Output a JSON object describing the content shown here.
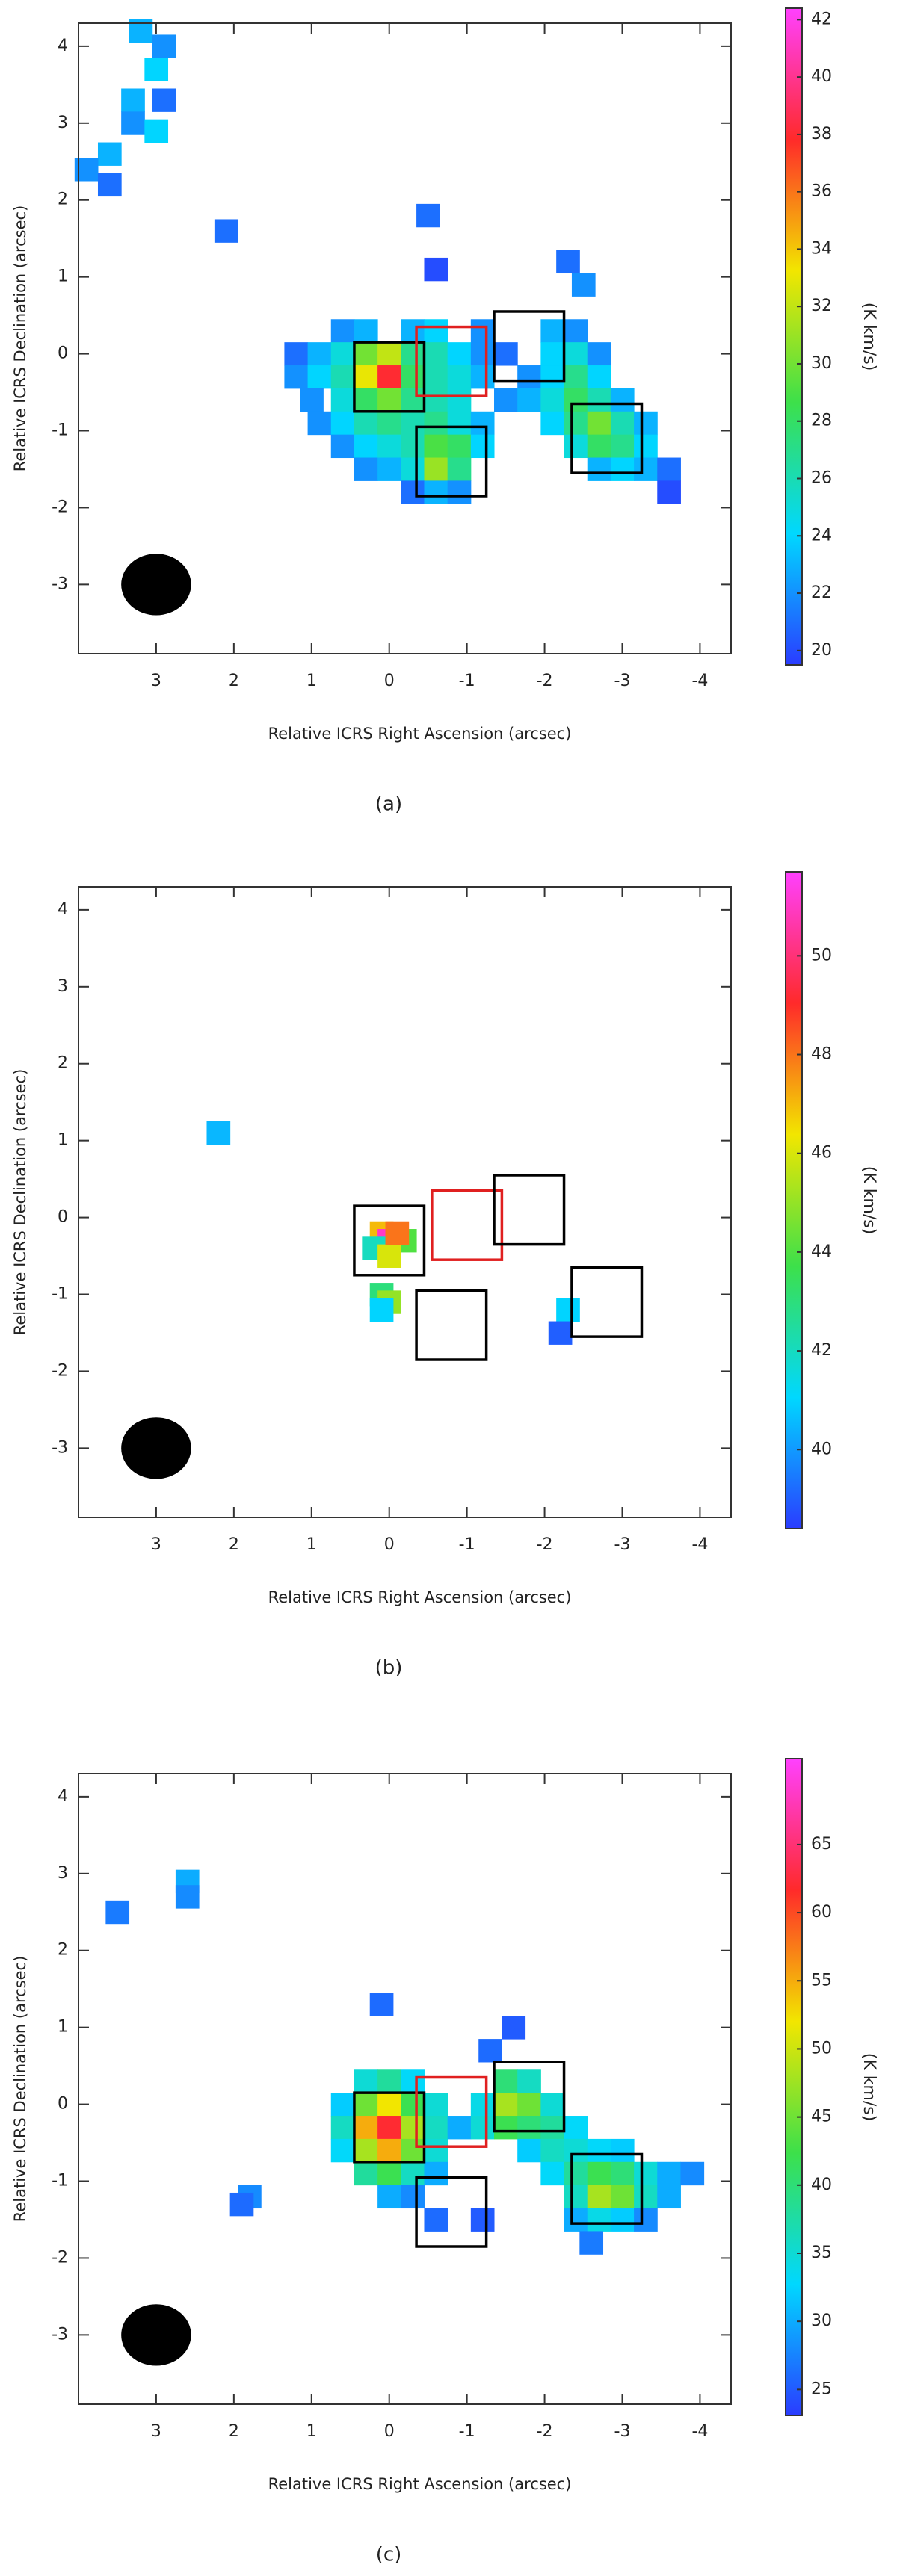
{
  "chart_data": [
    {
      "type": "map",
      "xlabel": "Relative ICRS Right Ascension (arcsec)",
      "ylabel": "Relative ICRS Declination (arcsec)",
      "caption": "(a)",
      "xlim": [
        4,
        -4.4
      ],
      "ylim": [
        -3.9,
        4.3
      ],
      "xticks": [
        3,
        2,
        1,
        0,
        -1,
        -2,
        -3,
        -4
      ],
      "yticks": [
        -3,
        -2,
        -1,
        0,
        1,
        2,
        3,
        4
      ],
      "colorbar": {
        "label": "(K km/s)",
        "lim": [
          19.5,
          42.4
        ],
        "ticks": [
          20,
          22,
          24,
          26,
          28,
          30,
          32,
          34,
          36,
          38,
          40,
          42
        ]
      },
      "colormap": [
        "#2a3cff",
        "#00d8ff",
        "#3de04a",
        "#f2e600",
        "#ff2a2a",
        "#ff40ff"
      ],
      "beam": {
        "x": 3,
        "y": -3
      },
      "boxes": [
        {
          "x": 0,
          "y": -0.3,
          "color": "#000000"
        },
        {
          "x": -0.8,
          "y": -0.1,
          "color": "#e02020"
        },
        {
          "x": -1.8,
          "y": 0.1,
          "color": "#000000"
        },
        {
          "x": -0.8,
          "y": -1.4,
          "color": "#000000"
        },
        {
          "x": -2.8,
          "y": -1.1,
          "color": "#000000"
        }
      ],
      "points": [
        {
          "x": 3.2,
          "y": 4.2,
          "value": 23
        },
        {
          "x": 2.9,
          "y": 4.0,
          "value": 22
        },
        {
          "x": 3.0,
          "y": 3.7,
          "value": 24
        },
        {
          "x": 3.3,
          "y": 3.3,
          "value": 23
        },
        {
          "x": 3.3,
          "y": 3.0,
          "value": 22
        },
        {
          "x": 3.0,
          "y": 2.9,
          "value": 24
        },
        {
          "x": 2.9,
          "y": 3.3,
          "value": 21
        },
        {
          "x": 3.6,
          "y": 2.6,
          "value": 23
        },
        {
          "x": 3.9,
          "y": 2.4,
          "value": 22
        },
        {
          "x": 3.6,
          "y": 2.2,
          "value": 21
        },
        {
          "x": 2.1,
          "y": 1.6,
          "value": 21
        },
        {
          "x": -0.5,
          "y": 1.8,
          "value": 21
        },
        {
          "x": -0.6,
          "y": 1.1,
          "value": 20
        },
        {
          "x": -2.3,
          "y": 1.2,
          "value": 21
        },
        {
          "x": -2.5,
          "y": 0.9,
          "value": 22
        },
        {
          "x": 0.6,
          "y": 0.3,
          "value": 22
        },
        {
          "x": 0.3,
          "y": 0.3,
          "value": 23
        },
        {
          "x": -0.3,
          "y": 0.3,
          "value": 23
        },
        {
          "x": -0.6,
          "y": 0.3,
          "value": 24
        },
        {
          "x": -1.2,
          "y": 0.3,
          "value": 22
        },
        {
          "x": -2.1,
          "y": 0.3,
          "value": 23
        },
        {
          "x": -2.4,
          "y": 0.3,
          "value": 22
        },
        {
          "x": 1.2,
          "y": 0.0,
          "value": 21
        },
        {
          "x": 0.9,
          "y": 0.0,
          "value": 23
        },
        {
          "x": 0.6,
          "y": 0.0,
          "value": 25
        },
        {
          "x": 0.3,
          "y": 0.0,
          "value": 30
        },
        {
          "x": 0.0,
          "y": 0.0,
          "value": 32
        },
        {
          "x": -0.3,
          "y": 0.0,
          "value": 27
        },
        {
          "x": -0.6,
          "y": 0.0,
          "value": 26
        },
        {
          "x": -0.9,
          "y": 0.0,
          "value": 24
        },
        {
          "x": -1.2,
          "y": 0.0,
          "value": 22
        },
        {
          "x": -1.5,
          "y": 0.0,
          "value": 21
        },
        {
          "x": -2.1,
          "y": 0.0,
          "value": 24
        },
        {
          "x": -2.4,
          "y": 0.0,
          "value": 25
        },
        {
          "x": -2.7,
          "y": 0.0,
          "value": 22
        },
        {
          "x": 1.2,
          "y": -0.3,
          "value": 22
        },
        {
          "x": 0.9,
          "y": -0.3,
          "value": 24
        },
        {
          "x": 0.6,
          "y": -0.3,
          "value": 26
        },
        {
          "x": 0.3,
          "y": -0.3,
          "value": 33
        },
        {
          "x": 0.0,
          "y": -0.3,
          "value": 38
        },
        {
          "x": -0.3,
          "y": -0.3,
          "value": 28
        },
        {
          "x": -0.6,
          "y": -0.3,
          "value": 26
        },
        {
          "x": -0.9,
          "y": -0.3,
          "value": 25
        },
        {
          "x": -1.2,
          "y": -0.3,
          "value": 23
        },
        {
          "x": -1.8,
          "y": -0.3,
          "value": 22
        },
        {
          "x": -2.1,
          "y": -0.3,
          "value": 24
        },
        {
          "x": -2.4,
          "y": -0.3,
          "value": 27
        },
        {
          "x": -2.7,
          "y": -0.3,
          "value": 24
        },
        {
          "x": 1.0,
          "y": -0.6,
          "value": 22
        },
        {
          "x": 0.6,
          "y": -0.6,
          "value": 25
        },
        {
          "x": 0.3,
          "y": -0.6,
          "value": 28
        },
        {
          "x": 0.0,
          "y": -0.6,
          "value": 30
        },
        {
          "x": -0.3,
          "y": -0.6,
          "value": 27
        },
        {
          "x": -0.6,
          "y": -0.6,
          "value": 26
        },
        {
          "x": -0.9,
          "y": -0.6,
          "value": 25
        },
        {
          "x": -1.5,
          "y": -0.6,
          "value": 22
        },
        {
          "x": -1.8,
          "y": -0.6,
          "value": 23
        },
        {
          "x": -2.1,
          "y": -0.6,
          "value": 25
        },
        {
          "x": -2.4,
          "y": -0.6,
          "value": 28
        },
        {
          "x": -2.7,
          "y": -0.6,
          "value": 26
        },
        {
          "x": -3.0,
          "y": -0.6,
          "value": 23
        },
        {
          "x": 0.9,
          "y": -0.9,
          "value": 22
        },
        {
          "x": 0.6,
          "y": -0.9,
          "value": 24
        },
        {
          "x": 0.3,
          "y": -0.9,
          "value": 26
        },
        {
          "x": 0.0,
          "y": -0.9,
          "value": 27
        },
        {
          "x": -0.3,
          "y": -0.9,
          "value": 26
        },
        {
          "x": -0.6,
          "y": -0.9,
          "value": 27
        },
        {
          "x": -0.9,
          "y": -0.9,
          "value": 25
        },
        {
          "x": -1.2,
          "y": -0.9,
          "value": 23
        },
        {
          "x": -2.1,
          "y": -0.9,
          "value": 24
        },
        {
          "x": -2.4,
          "y": -0.9,
          "value": 27
        },
        {
          "x": -2.7,
          "y": -0.9,
          "value": 30
        },
        {
          "x": -3.0,
          "y": -0.9,
          "value": 26
        },
        {
          "x": -3.3,
          "y": -0.9,
          "value": 23
        },
        {
          "x": 0.6,
          "y": -1.2,
          "value": 22
        },
        {
          "x": 0.3,
          "y": -1.2,
          "value": 24
        },
        {
          "x": 0.0,
          "y": -1.2,
          "value": 25
        },
        {
          "x": -0.3,
          "y": -1.2,
          "value": 26
        },
        {
          "x": -0.6,
          "y": -1.2,
          "value": 29
        },
        {
          "x": -0.9,
          "y": -1.2,
          "value": 28
        },
        {
          "x": -1.2,
          "y": -1.2,
          "value": 24
        },
        {
          "x": -2.4,
          "y": -1.2,
          "value": 25
        },
        {
          "x": -2.7,
          "y": -1.2,
          "value": 28
        },
        {
          "x": -3.0,
          "y": -1.2,
          "value": 27
        },
        {
          "x": -3.3,
          "y": -1.2,
          "value": 24
        },
        {
          "x": 0.3,
          "y": -1.5,
          "value": 22
        },
        {
          "x": 0.0,
          "y": -1.5,
          "value": 23
        },
        {
          "x": -0.3,
          "y": -1.5,
          "value": 25
        },
        {
          "x": -0.6,
          "y": -1.5,
          "value": 31
        },
        {
          "x": -0.9,
          "y": -1.5,
          "value": 27
        },
        {
          "x": -2.7,
          "y": -1.5,
          "value": 23
        },
        {
          "x": -3.0,
          "y": -1.5,
          "value": 24
        },
        {
          "x": -3.3,
          "y": -1.5,
          "value": 23
        },
        {
          "x": -3.6,
          "y": -1.5,
          "value": 21
        },
        {
          "x": -0.3,
          "y": -1.8,
          "value": 21
        },
        {
          "x": -0.6,
          "y": -1.8,
          "value": 23
        },
        {
          "x": -0.9,
          "y": -1.8,
          "value": 22
        },
        {
          "x": -3.6,
          "y": -1.8,
          "value": 20
        }
      ]
    },
    {
      "type": "map",
      "xlabel": "Relative ICRS Right Ascension (arcsec)",
      "ylabel": "Relative ICRS Declination (arcsec)",
      "caption": "(b)",
      "xlim": [
        4,
        -4.4
      ],
      "ylim": [
        -3.9,
        4.3
      ],
      "xticks": [
        3,
        2,
        1,
        0,
        -1,
        -2,
        -3,
        -4
      ],
      "yticks": [
        -3,
        -2,
        -1,
        0,
        1,
        2,
        3,
        4
      ],
      "colorbar": {
        "label": "(K km/s)",
        "lim": [
          38.4,
          51.7
        ],
        "ticks": [
          40,
          42,
          44,
          46,
          48,
          50
        ]
      },
      "colormap": [
        "#2a3cff",
        "#00d8ff",
        "#3de04a",
        "#f2e600",
        "#ff2a2a",
        "#ff40ff"
      ],
      "beam": {
        "x": 3,
        "y": -3
      },
      "boxes": [
        {
          "x": 0,
          "y": -0.3,
          "color": "#000000"
        },
        {
          "x": -1.0,
          "y": -0.1,
          "color": "#e02020"
        },
        {
          "x": -1.8,
          "y": 0.1,
          "color": "#000000"
        },
        {
          "x": -0.8,
          "y": -1.4,
          "color": "#000000"
        },
        {
          "x": -2.8,
          "y": -1.1,
          "color": "#000000"
        }
      ],
      "points": [
        {
          "x": 2.2,
          "y": 1.1,
          "value": 40.5
        },
        {
          "x": 0.1,
          "y": -0.2,
          "value": 47
        },
        {
          "x": 0.0,
          "y": -0.3,
          "value": 51
        },
        {
          "x": -0.2,
          "y": -0.3,
          "value": 44
        },
        {
          "x": 0.2,
          "y": -0.4,
          "value": 42
        },
        {
          "x": 0.0,
          "y": -0.5,
          "value": 46
        },
        {
          "x": -0.1,
          "y": -0.2,
          "value": 48
        },
        {
          "x": 0.1,
          "y": -1.0,
          "value": 43
        },
        {
          "x": 0.0,
          "y": -1.1,
          "value": 45
        },
        {
          "x": 0.1,
          "y": -1.2,
          "value": 41
        },
        {
          "x": -2.3,
          "y": -1.2,
          "value": 41
        },
        {
          "x": -2.2,
          "y": -1.5,
          "value": 39
        }
      ]
    },
    {
      "type": "map",
      "xlabel": "Relative ICRS Right Ascension (arcsec)",
      "ylabel": "Relative ICRS Declination (arcsec)",
      "caption": "(c)",
      "xlim": [
        4,
        -4.4
      ],
      "ylim": [
        -3.9,
        4.3
      ],
      "xticks": [
        3,
        2,
        1,
        0,
        -1,
        -2,
        -3,
        -4
      ],
      "yticks": [
        -3,
        -2,
        -1,
        0,
        1,
        2,
        3,
        4
      ],
      "colorbar": {
        "label": "(K km/s)",
        "lim": [
          23.1,
          71.3
        ],
        "ticks": [
          25,
          30,
          35,
          40,
          45,
          50,
          55,
          60,
          65
        ]
      },
      "colormap": [
        "#2a3cff",
        "#00d8ff",
        "#3de04a",
        "#f2e600",
        "#ff2a2a",
        "#ff40ff"
      ],
      "beam": {
        "x": 3,
        "y": -3
      },
      "boxes": [
        {
          "x": 0,
          "y": -0.3,
          "color": "#000000"
        },
        {
          "x": -0.8,
          "y": -0.1,
          "color": "#e02020"
        },
        {
          "x": -1.8,
          "y": 0.1,
          "color": "#000000"
        },
        {
          "x": -0.8,
          "y": -1.4,
          "color": "#000000"
        },
        {
          "x": -2.8,
          "y": -1.1,
          "color": "#000000"
        }
      ],
      "points": [
        {
          "x": 3.5,
          "y": 2.5,
          "value": 27
        },
        {
          "x": 2.6,
          "y": 2.9,
          "value": 30
        },
        {
          "x": 2.6,
          "y": 2.7,
          "value": 28
        },
        {
          "x": 1.8,
          "y": -1.2,
          "value": 28
        },
        {
          "x": 1.9,
          "y": -1.3,
          "value": 26
        },
        {
          "x": 0.1,
          "y": 1.3,
          "value": 26
        },
        {
          "x": -1.3,
          "y": 0.7,
          "value": 26
        },
        {
          "x": -1.6,
          "y": 1.0,
          "value": 25
        },
        {
          "x": 0.3,
          "y": 0.3,
          "value": 35
        },
        {
          "x": 0.0,
          "y": 0.3,
          "value": 38
        },
        {
          "x": -0.3,
          "y": 0.3,
          "value": 33
        },
        {
          "x": -1.5,
          "y": 0.3,
          "value": 40
        },
        {
          "x": -1.8,
          "y": 0.3,
          "value": 36
        },
        {
          "x": 0.6,
          "y": 0.0,
          "value": 32
        },
        {
          "x": 0.3,
          "y": 0.0,
          "value": 45
        },
        {
          "x": 0.0,
          "y": 0.0,
          "value": 52
        },
        {
          "x": -0.3,
          "y": 0.0,
          "value": 42
        },
        {
          "x": -0.6,
          "y": 0.0,
          "value": 35
        },
        {
          "x": -1.2,
          "y": 0.0,
          "value": 34
        },
        {
          "x": -1.5,
          "y": 0.0,
          "value": 48
        },
        {
          "x": -1.8,
          "y": 0.0,
          "value": 45
        },
        {
          "x": -2.1,
          "y": 0.0,
          "value": 35
        },
        {
          "x": 0.6,
          "y": -0.3,
          "value": 36
        },
        {
          "x": 0.3,
          "y": -0.3,
          "value": 55
        },
        {
          "x": 0.0,
          "y": -0.3,
          "value": 62
        },
        {
          "x": -0.3,
          "y": -0.3,
          "value": 48
        },
        {
          "x": -0.6,
          "y": -0.3,
          "value": 36
        },
        {
          "x": -0.9,
          "y": -0.3,
          "value": 30
        },
        {
          "x": -1.2,
          "y": -0.3,
          "value": 35
        },
        {
          "x": -1.5,
          "y": -0.3,
          "value": 42
        },
        {
          "x": -1.8,
          "y": -0.3,
          "value": 40
        },
        {
          "x": -2.1,
          "y": -0.3,
          "value": 38
        },
        {
          "x": -2.4,
          "y": -0.3,
          "value": 33
        },
        {
          "x": 0.6,
          "y": -0.6,
          "value": 33
        },
        {
          "x": 0.3,
          "y": -0.6,
          "value": 48
        },
        {
          "x": 0.0,
          "y": -0.6,
          "value": 55
        },
        {
          "x": -0.3,
          "y": -0.6,
          "value": 45
        },
        {
          "x": -0.6,
          "y": -0.6,
          "value": 35
        },
        {
          "x": -1.8,
          "y": -0.6,
          "value": 32
        },
        {
          "x": -2.1,
          "y": -0.6,
          "value": 36
        },
        {
          "x": -2.4,
          "y": -0.6,
          "value": 35
        },
        {
          "x": -2.7,
          "y": -0.6,
          "value": 33
        },
        {
          "x": -3.0,
          "y": -0.6,
          "value": 32
        },
        {
          "x": 0.3,
          "y": -0.9,
          "value": 38
        },
        {
          "x": 0.0,
          "y": -0.9,
          "value": 42
        },
        {
          "x": -0.3,
          "y": -0.9,
          "value": 36
        },
        {
          "x": -0.6,
          "y": -0.9,
          "value": 30
        },
        {
          "x": -2.1,
          "y": -0.9,
          "value": 33
        },
        {
          "x": -2.4,
          "y": -0.9,
          "value": 38
        },
        {
          "x": -2.7,
          "y": -0.9,
          "value": 42
        },
        {
          "x": -3.0,
          "y": -0.9,
          "value": 40
        },
        {
          "x": -3.3,
          "y": -0.9,
          "value": 35
        },
        {
          "x": -3.6,
          "y": -0.9,
          "value": 30
        },
        {
          "x": -3.9,
          "y": -0.9,
          "value": 28
        },
        {
          "x": 0.0,
          "y": -1.2,
          "value": 30
        },
        {
          "x": -0.3,
          "y": -1.2,
          "value": 28
        },
        {
          "x": -2.4,
          "y": -1.2,
          "value": 36
        },
        {
          "x": -2.7,
          "y": -1.2,
          "value": 48
        },
        {
          "x": -3.0,
          "y": -1.2,
          "value": 45
        },
        {
          "x": -3.3,
          "y": -1.2,
          "value": 36
        },
        {
          "x": -3.6,
          "y": -1.2,
          "value": 30
        },
        {
          "x": -0.6,
          "y": -1.5,
          "value": 26
        },
        {
          "x": -1.2,
          "y": -1.5,
          "value": 25
        },
        {
          "x": -2.4,
          "y": -1.5,
          "value": 30
        },
        {
          "x": -2.7,
          "y": -1.5,
          "value": 34
        },
        {
          "x": -3.0,
          "y": -1.5,
          "value": 32
        },
        {
          "x": -3.3,
          "y": -1.5,
          "value": 28
        },
        {
          "x": -2.6,
          "y": -1.8,
          "value": 27
        }
      ]
    }
  ]
}
